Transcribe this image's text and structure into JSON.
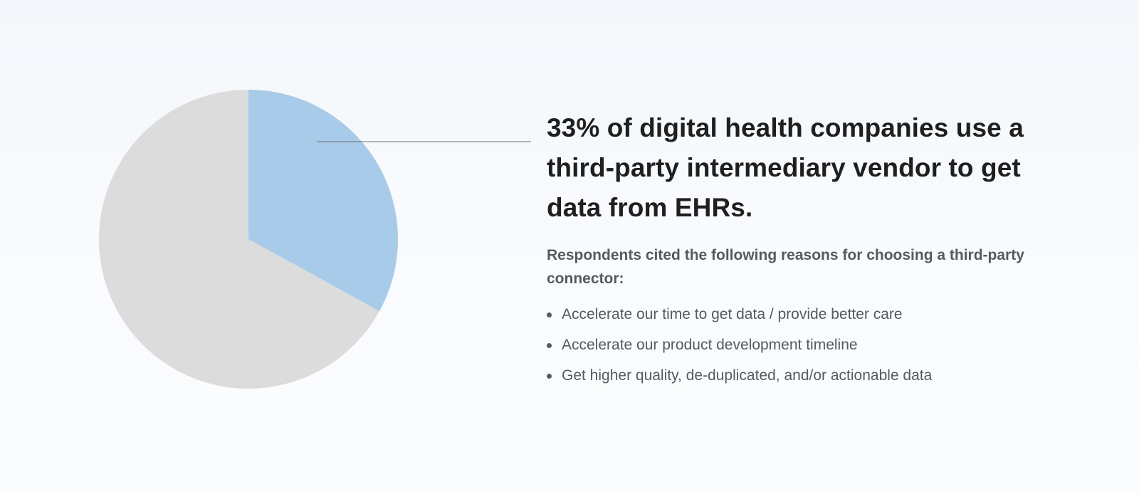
{
  "chart_data": {
    "type": "pie",
    "slices": [
      {
        "value": 33,
        "color": "#a8cbe9"
      },
      {
        "value": 67,
        "color": "#dcdcdc"
      }
    ],
    "start_angle": "12 o'clock",
    "direction": "clockwise",
    "legend": "none"
  },
  "callout": {
    "headline": "33% of digital health companies use a third-party intermediary vendor to get data from EHRs.",
    "intro": "Respondents cited the following reasons for choosing a third-party connector:",
    "reasons": [
      "Accelerate our time to get data / provide better care",
      "Accelerate our product development timeline",
      "Get higher quality, de-duplicated, and/or actionable data"
    ],
    "leader_color": "#6e6e6e"
  }
}
